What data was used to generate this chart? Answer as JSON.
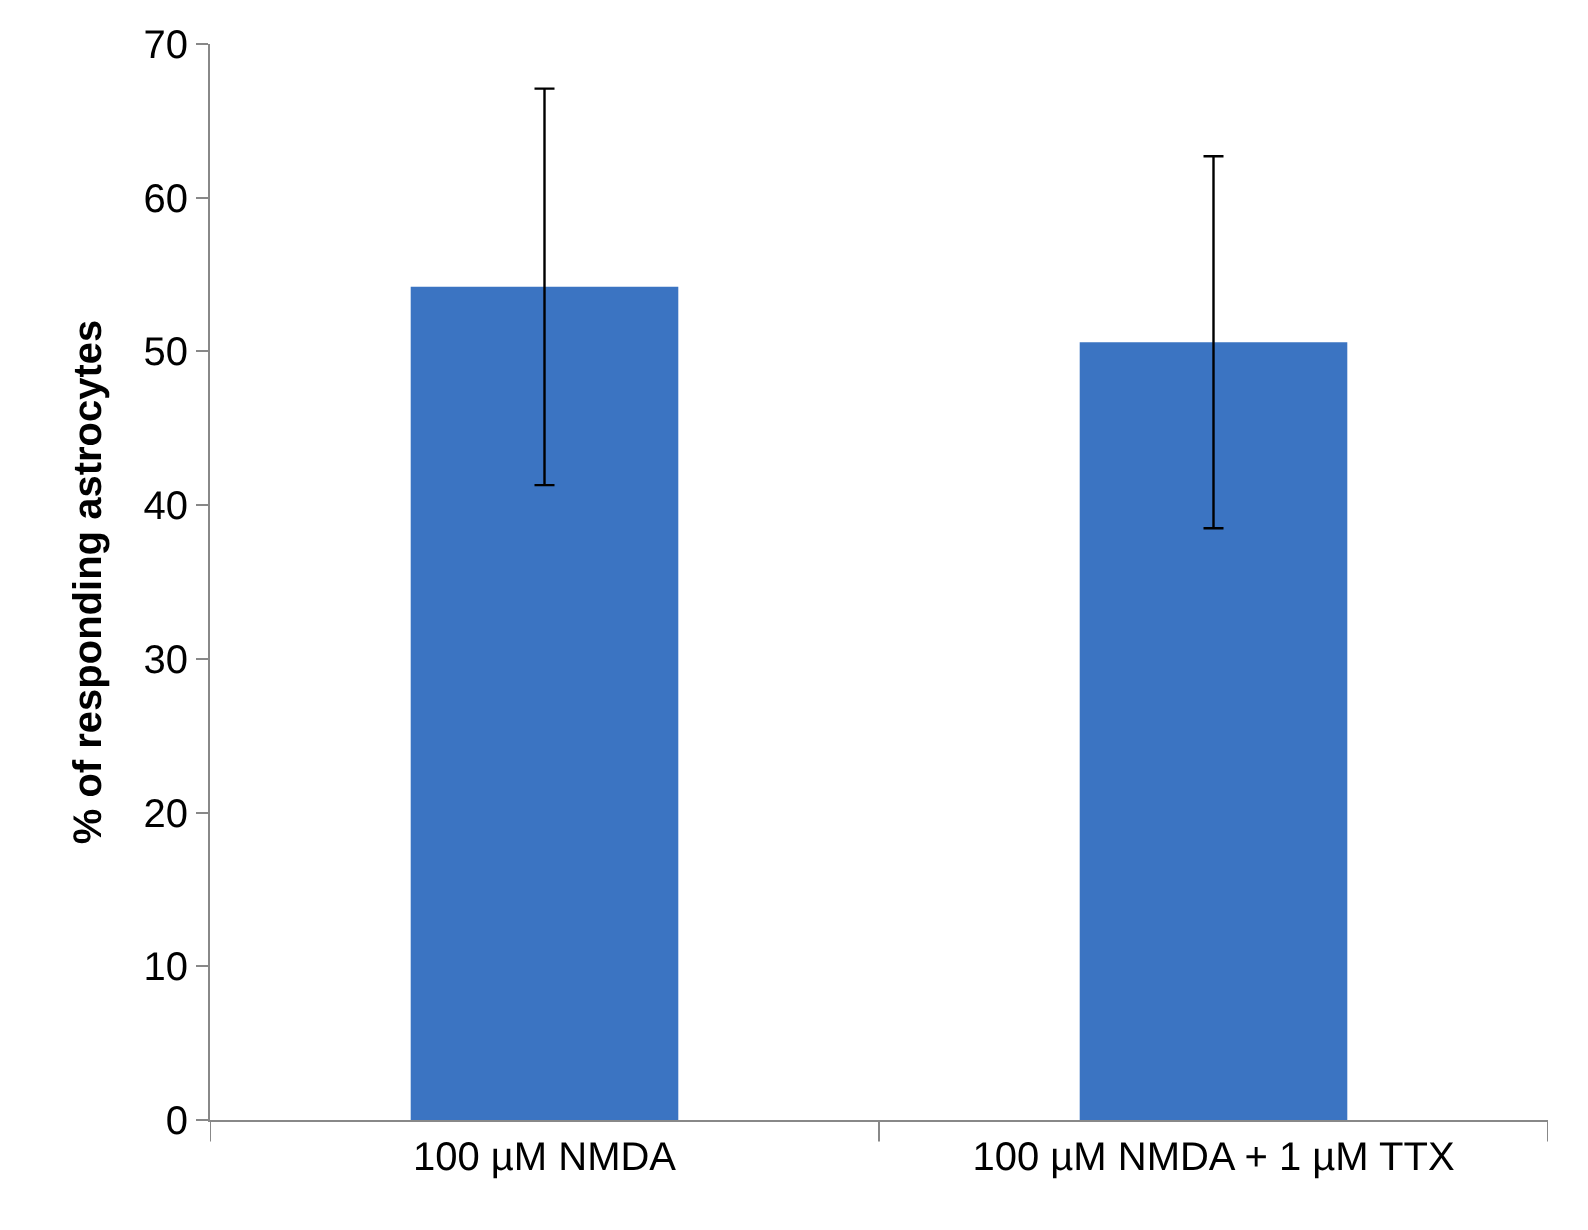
{
  "chart_data": {
    "type": "bar",
    "ylabel": "% of responding astrocytes",
    "categories": [
      "100 µM NMDA",
      "100 µM NMDA + 1 µM TTX"
    ],
    "values": [
      54.2,
      50.6
    ],
    "errors": [
      12.9,
      12.1
    ],
    "color": "#3b74c2",
    "ylim": [
      0,
      70
    ],
    "yticks": [
      0,
      10,
      20,
      30,
      40,
      50,
      60,
      70
    ],
    "legend": false
  }
}
